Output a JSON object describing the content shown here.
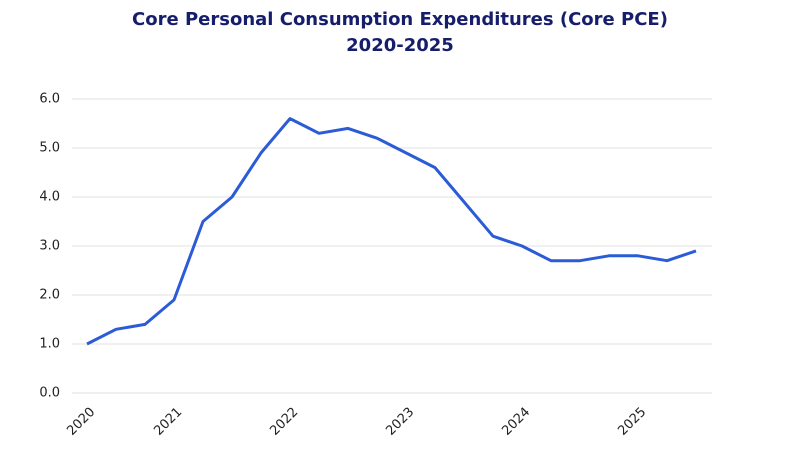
{
  "chart_data": {
    "type": "line",
    "title": "Core Personal Consumption Expenditures (Core PCE)",
    "subtitle": "2020-2025",
    "categories": [
      "2020",
      null,
      null,
      "2021",
      null,
      null,
      null,
      "2022",
      null,
      null,
      null,
      "2023",
      null,
      null,
      null,
      "2024",
      null,
      null,
      null,
      "2025",
      null,
      null
    ],
    "series": [
      {
        "name": "Core PCE",
        "color": "#2b5bd6",
        "values": [
          1.0,
          1.3,
          1.4,
          1.9,
          3.5,
          4.0,
          4.9,
          5.6,
          5.3,
          5.4,
          5.2,
          4.9,
          4.6,
          3.9,
          3.2,
          3.0,
          2.7,
          2.7,
          2.8,
          2.8,
          2.7,
          2.9
        ]
      }
    ],
    "ylim": [
      0,
      6
    ],
    "yticks": [
      {
        "value": 0,
        "label": "0.0"
      },
      {
        "value": 1,
        "label": "1.0"
      },
      {
        "value": 2,
        "label": "2.0"
      },
      {
        "value": 3,
        "label": "3.0"
      },
      {
        "value": 4,
        "label": "4.0"
      },
      {
        "value": 5,
        "label": "5.0"
      },
      {
        "value": 6,
        "label": "6.0"
      }
    ],
    "grid": true
  }
}
